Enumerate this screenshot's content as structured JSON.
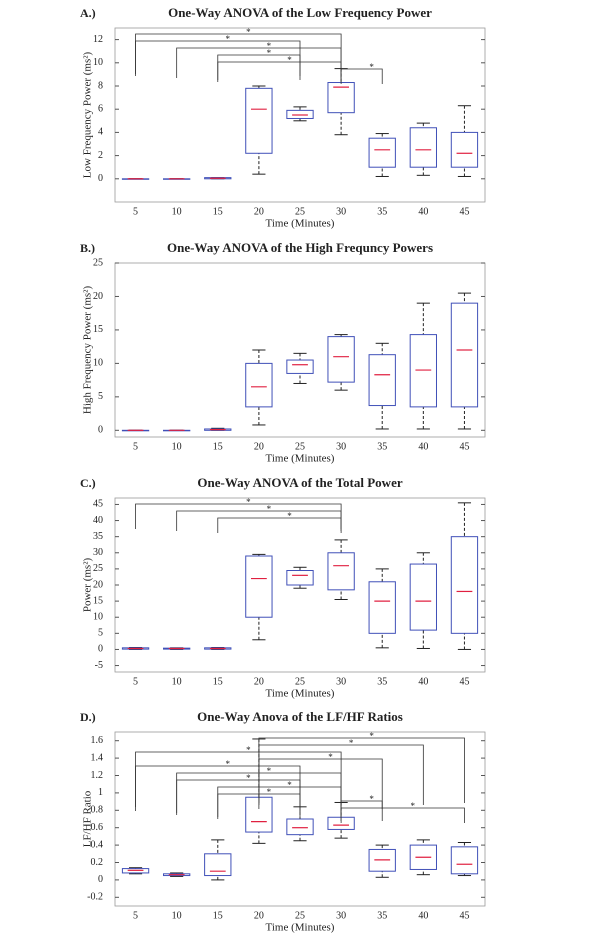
{
  "chart_data": [
    {
      "type": "box",
      "panel_label": "A.)",
      "title": "One-Way ANOVA of the Low Frequency Power",
      "x_label": "Time (Minutes)",
      "y_label": "Low Frequency Power (ms²)",
      "categories": [
        "5",
        "10",
        "15",
        "20",
        "25",
        "30",
        "35",
        "40",
        "45"
      ],
      "boxes": [
        {
          "low": 0,
          "q1": 0,
          "median": 0,
          "q3": 0,
          "high": 0
        },
        {
          "low": 0,
          "q1": 0,
          "median": 0,
          "q3": 0,
          "high": 0
        },
        {
          "low": 0,
          "q1": 0,
          "median": 0.05,
          "q3": 0.1,
          "high": 0.1
        },
        {
          "low": 0.4,
          "q1": 2.2,
          "median": 6,
          "q3": 7.8,
          "high": 8
        },
        {
          "low": 5,
          "q1": 5.2,
          "median": 5.5,
          "q3": 5.9,
          "high": 6.2
        },
        {
          "low": 3.8,
          "q1": 5.7,
          "median": 7.9,
          "q3": 8.3,
          "high": 9.5
        },
        {
          "low": 0.2,
          "q1": 1,
          "median": 2.5,
          "q3": 3.5,
          "high": 3.9
        },
        {
          "low": 0.3,
          "q1": 1,
          "median": 2.5,
          "q3": 4.4,
          "high": 4.8
        },
        {
          "low": 0.2,
          "q1": 1,
          "median": 2.2,
          "q3": 4,
          "high": 6.3
        }
      ],
      "ylim": [
        -2,
        13
      ],
      "yticks": [
        0,
        2,
        4,
        6,
        8,
        10,
        12
      ],
      "brackets": [
        {
          "from": "5",
          "to": "30",
          "label": "*"
        },
        {
          "from": "5",
          "to": "25",
          "label": "*"
        },
        {
          "from": "10",
          "to": "30",
          "label": "*"
        },
        {
          "from": "15",
          "to": "25",
          "label": "*"
        },
        {
          "from": "15",
          "to": "30",
          "label": "*"
        },
        {
          "from": "30",
          "to": "35",
          "label": "*"
        }
      ],
      "box_color": "#4050b8",
      "median_color": "#e02040",
      "whisker_color": "#222222"
    },
    {
      "type": "box",
      "panel_label": "B.)",
      "title": "One-Way ANOVA of the High Frequncy Powers",
      "x_label": "Time (Minutes)",
      "y_label": "High Frequency Power (ms²)",
      "categories": [
        "5",
        "10",
        "15",
        "20",
        "25",
        "30",
        "35",
        "40",
        "45"
      ],
      "boxes": [
        {
          "low": 0,
          "q1": 0,
          "median": 0,
          "q3": 0,
          "high": 0
        },
        {
          "low": 0,
          "q1": 0,
          "median": 0,
          "q3": 0,
          "high": 0
        },
        {
          "low": 0,
          "q1": 0,
          "median": 0.1,
          "q3": 0.2,
          "high": 0.3
        },
        {
          "low": 0.8,
          "q1": 3.5,
          "median": 6.5,
          "q3": 10,
          "high": 12
        },
        {
          "low": 7,
          "q1": 8.5,
          "median": 9.8,
          "q3": 10.5,
          "high": 11.5
        },
        {
          "low": 6,
          "q1": 7.2,
          "median": 11,
          "q3": 14,
          "high": 14.3
        },
        {
          "low": 0.2,
          "q1": 3.7,
          "median": 8.3,
          "q3": 11.3,
          "high": 13
        },
        {
          "low": 0.2,
          "q1": 3.5,
          "median": 9,
          "q3": 14.3,
          "high": 19
        },
        {
          "low": 0.2,
          "q1": 3.5,
          "median": 12,
          "q3": 19,
          "high": 20.5
        }
      ],
      "ylim": [
        -1,
        25
      ],
      "yticks": [
        0,
        5,
        10,
        15,
        20,
        25
      ],
      "brackets": [],
      "box_color": "#4050b8",
      "median_color": "#e02040",
      "whisker_color": "#222222"
    },
    {
      "type": "box",
      "panel_label": "C.)",
      "title": "One-Way ANOVA of the Total Power",
      "x_label": "Time (Minutes)",
      "y_label": "Power (ms²)",
      "categories": [
        "5",
        "10",
        "15",
        "20",
        "25",
        "30",
        "35",
        "40",
        "45"
      ],
      "boxes": [
        {
          "low": 0,
          "q1": 0.1,
          "median": 0.3,
          "q3": 0.5,
          "high": 0.6
        },
        {
          "low": 0,
          "q1": 0.1,
          "median": 0.3,
          "q3": 0.4,
          "high": 0.5
        },
        {
          "low": 0,
          "q1": 0.1,
          "median": 0.3,
          "q3": 0.5,
          "high": 0.6
        },
        {
          "low": 3,
          "q1": 10,
          "median": 22,
          "q3": 29,
          "high": 29.5
        },
        {
          "low": 19,
          "q1": 20,
          "median": 23,
          "q3": 24.5,
          "high": 25.5
        },
        {
          "low": 15.5,
          "q1": 18.5,
          "median": 26,
          "q3": 30,
          "high": 34
        },
        {
          "low": 0.5,
          "q1": 5,
          "median": 15,
          "q3": 21,
          "high": 25
        },
        {
          "low": 0.3,
          "q1": 6,
          "median": 15,
          "q3": 26.5,
          "high": 30
        },
        {
          "low": 0,
          "q1": 5,
          "median": 18,
          "q3": 35,
          "high": 45.5
        }
      ],
      "ylim": [
        -7,
        47
      ],
      "yticks": [
        -5,
        0,
        5,
        10,
        15,
        20,
        25,
        30,
        35,
        40,
        45
      ],
      "brackets": [
        {
          "from": "5",
          "to": "30",
          "label": "*"
        },
        {
          "from": "10",
          "to": "30",
          "label": "*"
        },
        {
          "from": "15",
          "to": "30",
          "label": "*"
        }
      ],
      "box_color": "#4050b8",
      "median_color": "#e02040",
      "whisker_color": "#222222"
    },
    {
      "type": "box",
      "panel_label": "D.)",
      "title": "One-Way Anova of the LF/HF Ratios",
      "x_label": "Time (Minutes)",
      "y_label": "LF/HF Ratio",
      "categories": [
        "5",
        "10",
        "15",
        "20",
        "25",
        "30",
        "35",
        "40",
        "45"
      ],
      "boxes": [
        {
          "low": 0.07,
          "q1": 0.08,
          "median": 0.11,
          "q3": 0.13,
          "high": 0.14
        },
        {
          "low": 0.04,
          "q1": 0.05,
          "median": 0.06,
          "q3": 0.07,
          "high": 0.08
        },
        {
          "low": 0,
          "q1": 0.05,
          "median": 0.1,
          "q3": 0.3,
          "high": 0.46
        },
        {
          "low": 0.42,
          "q1": 0.55,
          "median": 0.67,
          "q3": 0.95,
          "high": 1.62
        },
        {
          "low": 0.45,
          "q1": 0.52,
          "median": 0.6,
          "q3": 0.7,
          "high": 0.84
        },
        {
          "low": 0.48,
          "q1": 0.58,
          "median": 0.63,
          "q3": 0.72,
          "high": 0.89
        },
        {
          "low": 0.03,
          "q1": 0.1,
          "median": 0.23,
          "q3": 0.35,
          "high": 0.4
        },
        {
          "low": 0.06,
          "q1": 0.12,
          "median": 0.26,
          "q3": 0.4,
          "high": 0.46
        },
        {
          "low": 0.05,
          "q1": 0.07,
          "median": 0.18,
          "q3": 0.38,
          "high": 0.43
        }
      ],
      "ylim": [
        -0.3,
        1.7
      ],
      "yticks": [
        -0.2,
        0,
        0.2,
        0.4,
        0.6,
        0.8,
        1,
        1.2,
        1.4,
        1.6
      ],
      "brackets": [
        {
          "from": "20",
          "to": "45",
          "label": "*"
        },
        {
          "from": "20",
          "to": "40",
          "label": "*"
        },
        {
          "from": "5",
          "to": "30",
          "label": "*"
        },
        {
          "from": "20",
          "to": "35",
          "label": "*"
        },
        {
          "from": "5",
          "to": "25",
          "label": "*"
        },
        {
          "from": "10",
          "to": "30",
          "label": "*"
        },
        {
          "from": "10",
          "to": "25",
          "label": "*"
        },
        {
          "from": "15",
          "to": "30",
          "label": "*"
        },
        {
          "from": "15",
          "to": "25",
          "label": "*"
        },
        {
          "from": "30",
          "to": "35",
          "label": "*"
        },
        {
          "from": "30",
          "to": "45",
          "label": "*"
        }
      ],
      "box_color": "#4050b8",
      "median_color": "#e02040",
      "whisker_color": "#222222"
    }
  ]
}
